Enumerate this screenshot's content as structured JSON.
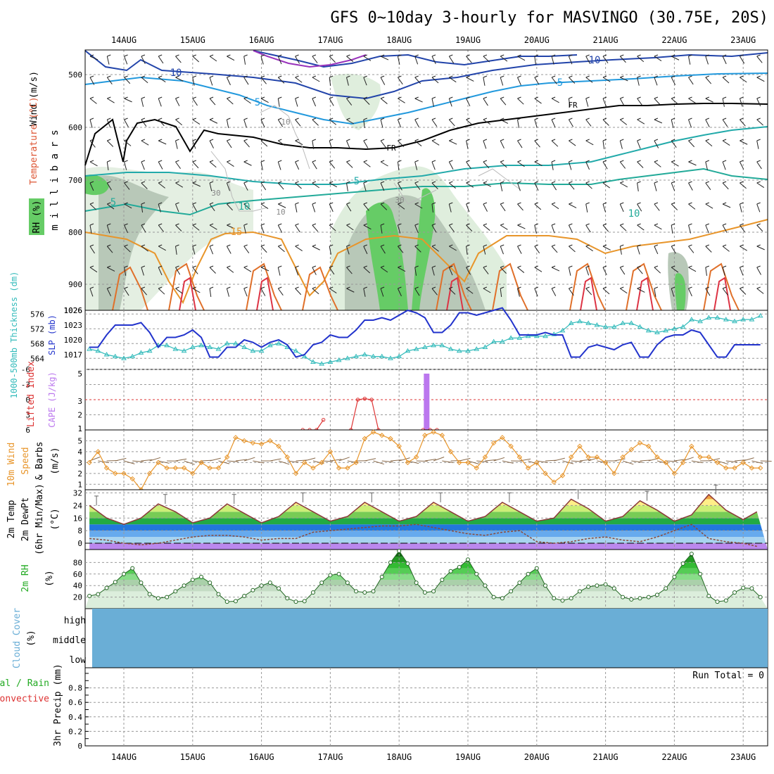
{
  "title": "GFS 0~10day 3-hourly for MASVINGO (30.75E, 20S)",
  "dates": [
    "14AUG",
    "15AUG",
    "16AUG",
    "17AUG",
    "18AUG",
    "19AUG",
    "20AUG",
    "21AUG",
    "22AUG",
    "23AUG"
  ],
  "colors": {
    "slp": "#2233cc",
    "thickness": "#33bbbb",
    "lifted": "#dd3333",
    "cape": "#bb77ee",
    "wind": "#e8952a",
    "rh": "#22aa22",
    "cloud": "#6aaed6",
    "grid": "#999999"
  },
  "panels": {
    "upper": {
      "axis_title": "m i l l i b a r s",
      "labels": {
        "wind": "Wind (m/s)",
        "temperature": "Temperature (°C)",
        "rh": "RH (%)"
      },
      "yticks": [
        "500",
        "600",
        "700",
        "800",
        "900",
        "1026"
      ],
      "contour_labels": [
        "10",
        "5",
        "5",
        "5",
        "10",
        "15",
        "FR",
        "FR",
        "10",
        "5",
        "10",
        "30",
        "30",
        "10",
        "10"
      ]
    },
    "slp": {
      "labels": {
        "thickness": "1000-500mb Thickness (dm)",
        "slp": "SLP (mb)"
      },
      "yticks_left": [
        "564",
        "568",
        "572",
        "576"
      ],
      "yticks_right": [
        "1017",
        "1020",
        "1023"
      ]
    },
    "cape": {
      "labels": {
        "lifted": "Lifted Index",
        "cape": "CAPE (J/kg)"
      },
      "yticks_left": [
        "6",
        "3",
        "0",
        "-3",
        "-6"
      ],
      "yticks_right": [
        "1",
        "2",
        "3",
        "5"
      ]
    },
    "wind": {
      "labels": {
        "wind": "10m Wind",
        "speed": "Speed",
        "barbs": "& Barbs",
        "unit": "(m/s)"
      },
      "yticks": [
        "1",
        "2",
        "3",
        "4",
        "5"
      ]
    },
    "temp": {
      "labels": {
        "temp": "2m Temp",
        "dewpt": "2m DewPt",
        "minmax": "(6hr Min/Max)",
        "unit": "(°C)"
      },
      "yticks": [
        "0",
        "8",
        "16",
        "24",
        "32"
      ]
    },
    "rh2m": {
      "labels": {
        "rh": "2m RH",
        "unit": "(%)"
      },
      "yticks": [
        "20",
        "40",
        "60",
        "80"
      ]
    },
    "cloud": {
      "labels": {
        "title": "Cloud Cover",
        "unit": "(%)"
      },
      "levels": [
        "high",
        "middle",
        "low"
      ]
    },
    "precip": {
      "labels": {
        "total": "Total / Rain",
        "convective": "Convective",
        "title": "3hr Precip (mm)"
      },
      "yticks": [
        "0",
        "0.2",
        "0.4",
        "0.6",
        "0.8"
      ],
      "run_total": "Run Total = 0"
    }
  },
  "chart_data": [
    {
      "type": "line",
      "title": "SLP (mb) and 1000-500mb Thickness (dm)",
      "x": [
        "13AUG 12",
        "13AUG 15",
        "13AUG 18",
        "13AUG 21",
        "14AUG 00",
        "14AUG 03",
        "14AUG 06",
        "14AUG 09",
        "14AUG 12",
        "14AUG 15",
        "14AUG 18",
        "14AUG 21",
        "15AUG 00",
        "15AUG 03",
        "15AUG 06",
        "15AUG 09",
        "15AUG 12",
        "15AUG 15",
        "15AUG 18",
        "15AUG 21",
        "16AUG 00",
        "16AUG 03",
        "16AUG 06",
        "16AUG 09",
        "16AUG 12",
        "16AUG 15",
        "16AUG 18",
        "16AUG 21",
        "17AUG 00",
        "17AUG 03",
        "17AUG 06",
        "17AUG 09",
        "17AUG 12",
        "17AUG 15",
        "17AUG 18",
        "17AUG 21",
        "18AUG 00",
        "18AUG 03",
        "18AUG 06",
        "18AUG 09",
        "18AUG 12",
        "18AUG 15",
        "18AUG 18",
        "18AUG 21",
        "19AUG 00",
        "19AUG 03",
        "19AUG 06",
        "19AUG 09",
        "19AUG 12",
        "19AUG 15",
        "19AUG 18",
        "19AUG 21",
        "20AUG 00",
        "20AUG 03",
        "20AUG 06",
        "20AUG 09",
        "20AUG 12",
        "20AUG 15",
        "20AUG 18",
        "20AUG 21",
        "21AUG 00",
        "21AUG 03",
        "21AUG 06",
        "21AUG 09",
        "21AUG 12",
        "21AUG 15",
        "21AUG 18",
        "21AUG 21",
        "22AUG 00",
        "22AUG 03",
        "22AUG 06",
        "22AUG 09",
        "22AUG 12",
        "22AUG 15",
        "22AUG 18",
        "22AUG 21",
        "23AUG 00",
        "23AUG 03",
        "23AUG 06"
      ],
      "series": [
        {
          "name": "SLP (mb)",
          "axis": "right",
          "values": [
            1018.5,
            1018.5,
            1021,
            1023,
            1023,
            1023,
            1023.5,
            1021.5,
            1018.5,
            1020.5,
            1020.5,
            1021,
            1022,
            1020.5,
            1016.5,
            1016.5,
            1018.5,
            1018.5,
            1020,
            1019.5,
            1018.5,
            1019.5,
            1020,
            1019,
            1016.5,
            1017,
            1019,
            1019.5,
            1021,
            1020.5,
            1020.5,
            1022,
            1024,
            1024,
            1024.5,
            1024,
            1025,
            1026,
            1025.5,
            1024.5,
            1021.5,
            1021.5,
            1023,
            1025.5,
            1025.5,
            1025,
            1025.5,
            1026,
            1026.5,
            1024,
            1021,
            1021,
            1021,
            1021.5,
            1021,
            1021,
            1016.5,
            1016.5,
            1018.5,
            1019,
            1018.5,
            1018,
            1019,
            1019.5,
            1016.5,
            1016.5,
            1019,
            1020.5,
            1021,
            1021,
            1022,
            1021.5,
            1019,
            1016.5,
            1016.5,
            1019,
            1019,
            1019,
            1019
          ]
        },
        {
          "name": "1000-500mb Thickness (dm)",
          "axis": "left",
          "values": [
            566.5,
            566,
            565,
            564.5,
            564,
            564.5,
            565.5,
            566,
            567.5,
            567.5,
            566.5,
            566,
            567,
            567.5,
            567,
            566.5,
            568,
            568,
            567,
            566,
            566,
            567.5,
            568,
            567,
            566,
            564.5,
            563,
            562.5,
            563,
            563.5,
            564,
            564.5,
            565,
            564.5,
            564.5,
            564,
            564.5,
            566,
            566.5,
            567,
            567.5,
            567.5,
            566.5,
            566,
            566,
            566.5,
            567,
            568.5,
            568.5,
            569.5,
            569.5,
            570,
            570,
            570,
            570.5,
            571.5,
            573.5,
            574,
            573.5,
            573,
            572.5,
            572.5,
            573.5,
            573.5,
            572.5,
            571.5,
            571,
            571.5,
            572,
            572.5,
            574.5,
            574,
            575,
            575,
            574.5,
            574,
            574.5,
            574.5,
            575.5
          ]
        }
      ],
      "ylim_left": [
        561,
        577
      ],
      "ylim_right": [
        1014,
        1026
      ]
    },
    {
      "type": "line",
      "title": "Lifted Index and CAPE (J/kg)",
      "series": [
        {
          "name": "Lifted Index",
          "values_note": "",
          "segments": [
            [
              [
                16.6,
                6
              ],
              [
                16.7,
                6
              ],
              [
                16.8,
                6
              ],
              [
                16.9,
                4
              ]
            ],
            [
              [
                17.3,
                6
              ],
              [
                17.4,
                0
              ],
              [
                17.5,
                -0.2
              ],
              [
                17.6,
                0
              ],
              [
                17.7,
                6
              ]
            ],
            [
              [
                18.35,
                6
              ],
              [
                18.45,
                6
              ],
              [
                18.55,
                6
              ]
            ]
          ]
        },
        {
          "name": "CAPE (J/kg)",
          "bars": [
            [
              18.4,
              5
            ]
          ]
        }
      ],
      "ylim_left": [
        6,
        -6
      ],
      "ylim_right": [
        1,
        5
      ]
    },
    {
      "type": "line",
      "title": "10m Wind Speed (m/s)",
      "x": [
        "13AUG 12",
        "13AUG 15",
        "13AUG 18",
        "13AUG 21",
        "14AUG 00",
        "14AUG 03",
        "14AUG 06",
        "14AUG 09",
        "14AUG 12",
        "14AUG 15",
        "14AUG 18",
        "14AUG 21",
        "15AUG 00",
        "15AUG 03",
        "15AUG 06",
        "15AUG 09",
        "15AUG 12",
        "15AUG 15",
        "15AUG 18",
        "15AUG 21",
        "16AUG 00",
        "16AUG 03",
        "16AUG 06",
        "16AUG 09",
        "16AUG 12",
        "16AUG 15",
        "16AUG 18",
        "16AUG 21",
        "17AUG 00",
        "17AUG 03",
        "17AUG 06",
        "17AUG 09",
        "17AUG 12",
        "17AUG 15",
        "17AUG 18",
        "17AUG 21",
        "18AUG 00",
        "18AUG 03",
        "18AUG 06",
        "18AUG 09",
        "18AUG 12",
        "18AUG 15",
        "18AUG 18",
        "18AUG 21",
        "19AUG 00",
        "19AUG 03",
        "19AUG 06",
        "19AUG 09",
        "19AUG 12",
        "19AUG 15",
        "19AUG 18",
        "19AUG 21",
        "20AUG 00",
        "20AUG 03",
        "20AUG 06",
        "20AUG 09",
        "20AUG 12",
        "20AUG 15",
        "20AUG 18",
        "20AUG 21",
        "21AUG 00",
        "21AUG 03",
        "21AUG 06",
        "21AUG 09",
        "21AUG 12",
        "21AUG 15",
        "21AUG 18",
        "21AUG 21",
        "22AUG 00",
        "22AUG 03",
        "22AUG 06",
        "22AUG 09",
        "22AUG 12",
        "22AUG 15",
        "22AUG 18",
        "22AUG 21",
        "23AUG 00",
        "23AUG 03",
        "23AUG 06"
      ],
      "series": [
        {
          "name": "Speed",
          "values": [
            3,
            4,
            2.5,
            2,
            2,
            1.5,
            0.5,
            2,
            3,
            2.5,
            2.5,
            2.5,
            2,
            3,
            2.5,
            2.5,
            3.5,
            5.3,
            5,
            4.8,
            4.7,
            5,
            4.5,
            3.5,
            2,
            3,
            2.5,
            3,
            4,
            2.5,
            2.5,
            3,
            5.2,
            5.8,
            5.5,
            5.2,
            4.5,
            3,
            3.5,
            5.5,
            5.8,
            5.5,
            4,
            3,
            3,
            2.5,
            3.5,
            4.8,
            5.3,
            4.5,
            3.5,
            2.5,
            3,
            2,
            1.2,
            1.8,
            3.5,
            4.5,
            3.5,
            3.5,
            3,
            2,
            3.5,
            4.2,
            4.8,
            4.5,
            3.5,
            3,
            2,
            3,
            4.5,
            3.5,
            3.5,
            3,
            2.5,
            2.5,
            3,
            2.5,
            2.5
          ]
        }
      ],
      "ylim": [
        0.5,
        6
      ]
    },
    {
      "type": "area",
      "title": "2m Temp (°C)",
      "x_days": [
        13.5,
        13.75,
        14.0,
        14.25,
        14.5,
        14.75,
        15.0,
        15.25,
        15.5,
        15.75,
        16.0,
        16.25,
        16.5,
        16.75,
        17.0,
        17.25,
        17.5,
        17.75,
        18.0,
        18.25,
        18.5,
        18.75,
        19.0,
        19.25,
        19.5,
        19.75,
        20.0,
        20.25,
        20.5,
        20.75,
        21.0,
        21.25,
        21.5,
        21.75,
        22.0,
        22.25,
        22.5,
        22.75,
        23.0,
        23.2
      ],
      "series": [
        {
          "name": "2m Temp",
          "values": [
            24,
            16,
            12,
            16,
            25,
            20,
            13,
            16,
            25,
            19,
            13,
            17,
            26,
            20,
            14,
            17,
            26,
            20,
            14,
            17,
            26,
            20,
            14,
            17,
            26,
            20,
            14,
            16,
            28,
            22,
            14,
            17,
            27,
            21,
            14,
            18,
            31,
            21,
            15,
            20
          ]
        },
        {
          "name": "2m DewPt",
          "values": [
            3,
            2,
            0,
            -1,
            0,
            2,
            4,
            5,
            5,
            4,
            2,
            3,
            3,
            7,
            8,
            9,
            10,
            11,
            11,
            12,
            10,
            8,
            6,
            5,
            7,
            8,
            1,
            0,
            1,
            3,
            4,
            2,
            1,
            4,
            8,
            12,
            3,
            1,
            0,
            -2
          ]
        }
      ],
      "ylim": [
        -4,
        34
      ]
    },
    {
      "type": "area",
      "title": "2m RH (%)",
      "x_days": [
        13.5,
        13.625,
        13.75,
        13.875,
        14.0,
        14.125,
        14.25,
        14.375,
        14.5,
        14.625,
        14.75,
        14.875,
        15.0,
        15.125,
        15.25,
        15.375,
        15.5,
        15.625,
        15.75,
        15.875,
        16.0,
        16.125,
        16.25,
        16.375,
        16.5,
        16.625,
        16.75,
        16.875,
        17.0,
        17.125,
        17.25,
        17.375,
        17.5,
        17.625,
        17.75,
        17.875,
        18.0,
        18.125,
        18.25,
        18.375,
        18.5,
        18.625,
        18.75,
        18.875,
        19.0,
        19.125,
        19.25,
        19.375,
        19.5,
        19.625,
        19.75,
        19.875,
        20.0,
        20.125,
        20.25,
        20.375,
        20.5,
        20.625,
        20.75,
        20.875,
        21.0,
        21.125,
        21.25,
        21.375,
        21.5,
        21.625,
        21.75,
        21.875,
        22.0,
        22.125,
        22.25,
        22.375,
        22.5,
        22.625,
        22.75,
        22.875,
        23.0,
        23.125,
        23.25
      ],
      "series": [
        {
          "name": "2m RH",
          "values": [
            22,
            25,
            36,
            46,
            60,
            70,
            45,
            25,
            18,
            20,
            30,
            40,
            50,
            55,
            45,
            25,
            12,
            13,
            22,
            32,
            40,
            45,
            35,
            18,
            12,
            13,
            28,
            45,
            58,
            60,
            45,
            30,
            28,
            30,
            55,
            80,
            100,
            78,
            45,
            28,
            30,
            50,
            65,
            72,
            85,
            60,
            40,
            20,
            18,
            30,
            45,
            60,
            70,
            40,
            18,
            14,
            18,
            30,
            38,
            40,
            42,
            35,
            20,
            16,
            18,
            20,
            24,
            35,
            55,
            78,
            95,
            60,
            22,
            12,
            14,
            28,
            36,
            35,
            20
          ]
        }
      ],
      "ylim": [
        0,
        100
      ]
    },
    {
      "type": "bar",
      "title": "3hr Precip (mm)",
      "categories": [],
      "values": [],
      "ylim": [
        0,
        1
      ]
    }
  ]
}
